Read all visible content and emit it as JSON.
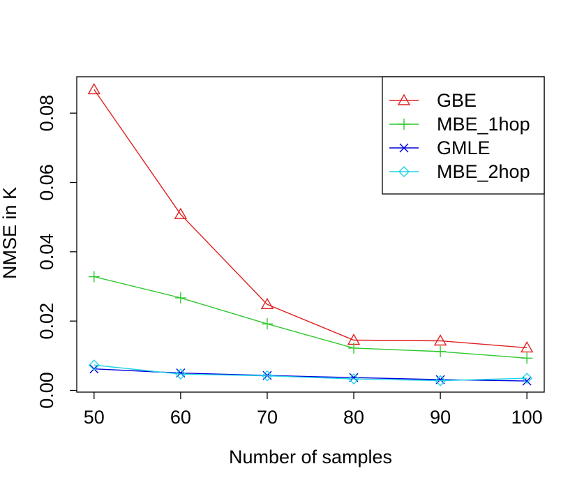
{
  "chart_data": {
    "type": "line",
    "title": "",
    "xlabel": "Number of samples",
    "ylabel": "NMSE in K",
    "x": [
      50,
      60,
      70,
      80,
      90,
      100
    ],
    "x_ticks": [
      "50",
      "60",
      "70",
      "80",
      "90",
      "100"
    ],
    "y_ticks": [
      "0.00",
      "0.02",
      "0.04",
      "0.06",
      "0.08"
    ],
    "xlim": [
      48,
      102
    ],
    "ylim": [
      -0.0005,
      0.0905
    ],
    "legend_position": "top-right",
    "grid": false,
    "series": [
      {
        "name": "GBE",
        "color": "#df2020",
        "marker": "triangle",
        "values": [
          0.0868,
          0.0508,
          0.0248,
          0.0145,
          0.0143,
          0.0123
        ]
      },
      {
        "name": "MBE_1hop",
        "color": "#2fc82f",
        "marker": "plus",
        "values": [
          0.0328,
          0.0267,
          0.0192,
          0.0122,
          0.0112,
          0.0093
        ]
      },
      {
        "name": "GMLE",
        "color": "#0000dd",
        "marker": "cross",
        "values": [
          0.0062,
          0.005,
          0.0043,
          0.0037,
          0.0031,
          0.0027
        ]
      },
      {
        "name": "MBE_2hop",
        "color": "#20d4e6",
        "marker": "diamond",
        "values": [
          0.0073,
          0.0047,
          0.0042,
          0.0033,
          0.0028,
          0.0035
        ]
      }
    ]
  }
}
